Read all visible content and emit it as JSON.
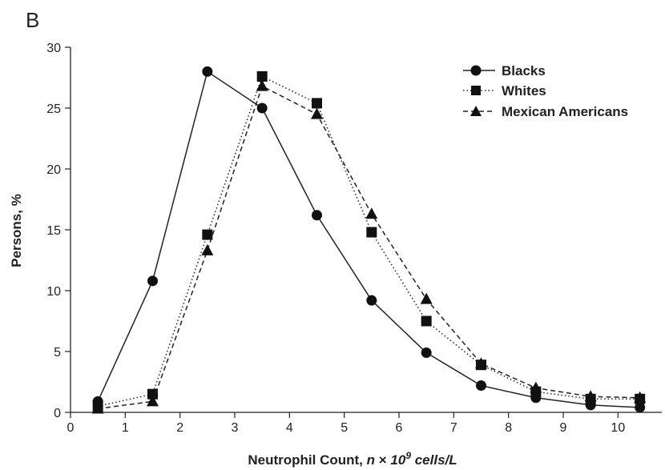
{
  "panel_label": "B",
  "chart_data": {
    "type": "line",
    "xlabel_parts": [
      "Neutrophil Count, ",
      "n",
      " × ",
      "10",
      "9",
      " cells/L"
    ],
    "ylabel": "Persons, %",
    "xlim": [
      0,
      10.8
    ],
    "ylim": [
      0,
      30
    ],
    "xticks": [
      0,
      1,
      2,
      3,
      4,
      5,
      6,
      7,
      8,
      9,
      10
    ],
    "yticks": [
      0,
      5,
      10,
      15,
      20,
      25,
      30
    ],
    "grid": false,
    "legend_position": "top-right",
    "series": [
      {
        "name": "Blacks",
        "marker": "circle",
        "line_style": "solid",
        "x": [
          0.5,
          1.5,
          2.5,
          3.5,
          4.5,
          5.5,
          6.5,
          7.5,
          8.5,
          9.5,
          10.4
        ],
        "y": [
          0.9,
          10.8,
          28.0,
          25.0,
          16.2,
          9.2,
          4.9,
          2.2,
          1.2,
          0.6,
          0.4
        ]
      },
      {
        "name": "Whites",
        "marker": "square",
        "line_style": "dotted",
        "x": [
          0.5,
          1.5,
          2.5,
          3.5,
          4.5,
          5.5,
          6.5,
          7.5,
          8.5,
          9.5,
          10.4
        ],
        "y": [
          0.5,
          1.5,
          14.6,
          27.6,
          25.4,
          14.8,
          7.5,
          3.9,
          1.7,
          1.1,
          1.1
        ]
      },
      {
        "name": "Mexican Americans",
        "marker": "triangle",
        "line_style": "dashed",
        "x": [
          0.5,
          1.5,
          2.5,
          3.5,
          4.5,
          5.5,
          6.5,
          7.5,
          8.5,
          9.5,
          10.4
        ],
        "y": [
          0.3,
          0.9,
          13.3,
          26.8,
          24.5,
          16.3,
          9.3,
          4.0,
          2.0,
          1.3,
          1.2
        ]
      }
    ]
  }
}
